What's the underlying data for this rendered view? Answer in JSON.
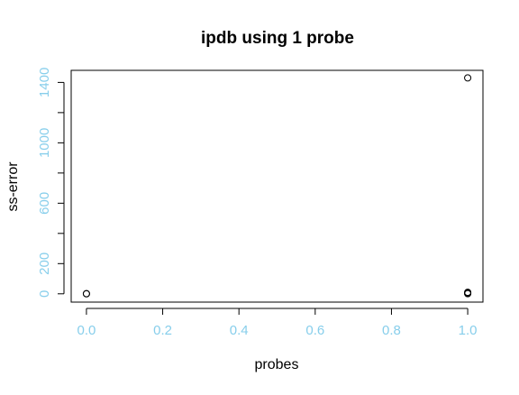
{
  "colors": {
    "tick_label": "#87CEEB",
    "axis": "#000000",
    "point_stroke": "#000000",
    "background": "#ffffff"
  },
  "chart_data": {
    "type": "scatter",
    "title": "ipdb using 1 probe",
    "xlabel": "probes",
    "ylabel": "ss-error",
    "xlim": [
      -0.04,
      1.04
    ],
    "ylim": [
      -55,
      1480
    ],
    "x_ticks": [
      0.0,
      0.2,
      0.4,
      0.6,
      0.8,
      1.0
    ],
    "x_tick_labels": [
      "0.0",
      "0.2",
      "0.4",
      "0.6",
      "0.8",
      "1.0"
    ],
    "y_ticks": [
      0,
      200,
      400,
      600,
      800,
      1000,
      1200,
      1400
    ],
    "y_tick_labels": [
      "0",
      "200",
      "",
      "600",
      "",
      "1000",
      "",
      "1400"
    ],
    "grid": false,
    "legend": "none",
    "points": [
      {
        "x": 0.0,
        "y": 0
      },
      {
        "x": 0.0,
        "y": 1
      },
      {
        "x": 1.0,
        "y": 1430
      },
      {
        "x": 1.0,
        "y": 10
      },
      {
        "x": 1.0,
        "y": 6
      },
      {
        "x": 1.0,
        "y": 3
      },
      {
        "x": 1.0,
        "y": 1
      }
    ]
  }
}
